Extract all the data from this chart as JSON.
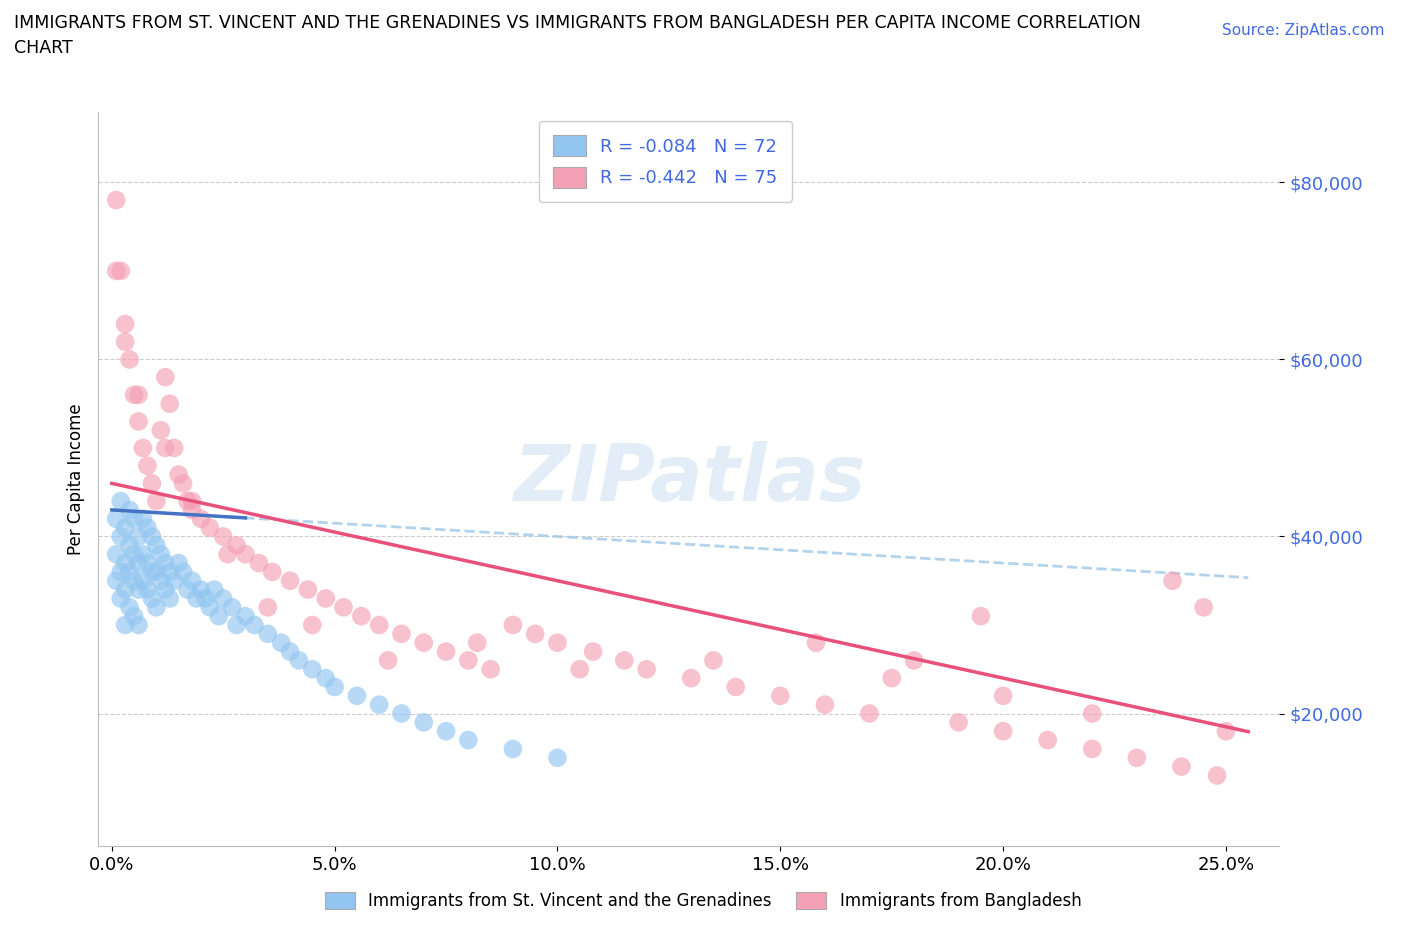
{
  "title_line1": "IMMIGRANTS FROM ST. VINCENT AND THE GRENADINES VS IMMIGRANTS FROM BANGLADESH PER CAPITA INCOME CORRELATION",
  "title_line2": "CHART",
  "source": "Source: ZipAtlas.com",
  "ylabel": "Per Capita Income",
  "ytick_labels": [
    "$80,000",
    "$60,000",
    "$40,000",
    "$20,000"
  ],
  "ytick_values": [
    80000,
    60000,
    40000,
    20000
  ],
  "xlim": [
    -0.003,
    0.262
  ],
  "ylim": [
    5000,
    88000
  ],
  "legend1_label": "R = -0.084   N = 72",
  "legend2_label": "R = -0.442   N = 75",
  "color_blue": "#92C5F0",
  "color_pink": "#F4A0B5",
  "line_blue": "#4472C4",
  "line_pink": "#E8527A",
  "dash_blue": "#A0C8E8",
  "dash_pink": "#F0A0BC",
  "watermark_color": "#C8DCF0",
  "bottom_legend1": "Immigrants from St. Vincent and the Grenadines",
  "bottom_legend2": "Immigrants from Bangladesh",
  "blue_x": [
    0.001,
    0.001,
    0.001,
    0.002,
    0.002,
    0.002,
    0.002,
    0.003,
    0.003,
    0.003,
    0.003,
    0.004,
    0.004,
    0.004,
    0.004,
    0.005,
    0.005,
    0.005,
    0.005,
    0.006,
    0.006,
    0.006,
    0.006,
    0.007,
    0.007,
    0.007,
    0.008,
    0.008,
    0.008,
    0.009,
    0.009,
    0.009,
    0.01,
    0.01,
    0.01,
    0.011,
    0.011,
    0.012,
    0.012,
    0.013,
    0.013,
    0.014,
    0.015,
    0.016,
    0.017,
    0.018,
    0.019,
    0.02,
    0.021,
    0.022,
    0.023,
    0.024,
    0.025,
    0.027,
    0.028,
    0.03,
    0.032,
    0.035,
    0.038,
    0.04,
    0.042,
    0.045,
    0.048,
    0.05,
    0.055,
    0.06,
    0.065,
    0.07,
    0.075,
    0.08,
    0.09,
    0.1
  ],
  "blue_y": [
    42000,
    38000,
    35000,
    44000,
    40000,
    36000,
    33000,
    41000,
    37000,
    34000,
    30000,
    43000,
    39000,
    36000,
    32000,
    42000,
    38000,
    35000,
    31000,
    40000,
    37000,
    34000,
    30000,
    42000,
    38000,
    35000,
    41000,
    37000,
    34000,
    40000,
    36000,
    33000,
    39000,
    36000,
    32000,
    38000,
    35000,
    37000,
    34000,
    36000,
    33000,
    35000,
    37000,
    36000,
    34000,
    35000,
    33000,
    34000,
    33000,
    32000,
    34000,
    31000,
    33000,
    32000,
    30000,
    31000,
    30000,
    29000,
    28000,
    27000,
    26000,
    25000,
    24000,
    23000,
    22000,
    21000,
    20000,
    19000,
    18000,
    17000,
    16000,
    15000
  ],
  "pink_x": [
    0.001,
    0.002,
    0.003,
    0.004,
    0.005,
    0.006,
    0.007,
    0.008,
    0.009,
    0.01,
    0.011,
    0.012,
    0.013,
    0.014,
    0.015,
    0.016,
    0.017,
    0.018,
    0.02,
    0.022,
    0.025,
    0.028,
    0.03,
    0.033,
    0.036,
    0.04,
    0.044,
    0.048,
    0.052,
    0.056,
    0.06,
    0.065,
    0.07,
    0.075,
    0.08,
    0.085,
    0.09,
    0.095,
    0.1,
    0.108,
    0.115,
    0.12,
    0.13,
    0.14,
    0.15,
    0.16,
    0.17,
    0.18,
    0.19,
    0.2,
    0.21,
    0.22,
    0.23,
    0.24,
    0.248,
    0.25,
    0.245,
    0.238,
    0.195,
    0.158,
    0.135,
    0.105,
    0.082,
    0.062,
    0.045,
    0.035,
    0.026,
    0.018,
    0.012,
    0.006,
    0.003,
    0.001,
    0.22,
    0.2,
    0.175
  ],
  "pink_y": [
    78000,
    70000,
    64000,
    60000,
    56000,
    53000,
    50000,
    48000,
    46000,
    44000,
    52000,
    58000,
    55000,
    50000,
    47000,
    46000,
    44000,
    43000,
    42000,
    41000,
    40000,
    39000,
    38000,
    37000,
    36000,
    35000,
    34000,
    33000,
    32000,
    31000,
    30000,
    29000,
    28000,
    27000,
    26000,
    25000,
    30000,
    29000,
    28000,
    27000,
    26000,
    25000,
    24000,
    23000,
    22000,
    21000,
    20000,
    26000,
    19000,
    18000,
    17000,
    16000,
    15000,
    14000,
    13000,
    18000,
    32000,
    35000,
    31000,
    28000,
    26000,
    25000,
    28000,
    26000,
    30000,
    32000,
    38000,
    44000,
    50000,
    56000,
    62000,
    70000,
    20000,
    22000,
    24000
  ]
}
